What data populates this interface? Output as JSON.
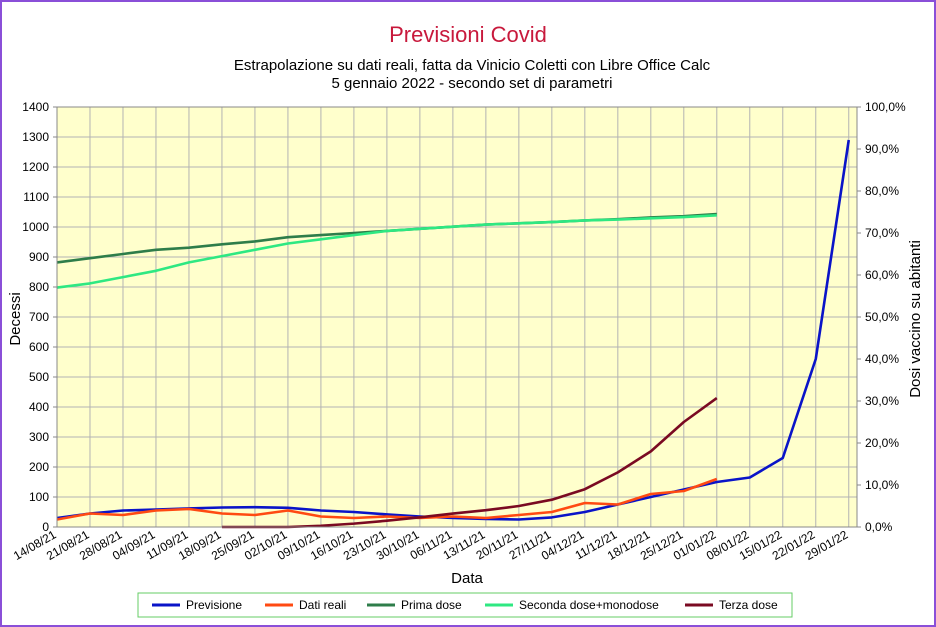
{
  "chart_data": {
    "type": "line",
    "title": "Previsioni Covid",
    "subtitle": [
      "Estrapolazione su dati reali, fatta da Vinicio Coletti con Libre Office Calc",
      "5 gennaio 2022 - secondo set di parametri"
    ],
    "x_label": "Data",
    "y_label": "Decessi",
    "y2_label": "Dosi vaccino su abitanti",
    "x": [
      "14/08/21",
      "21/08/21",
      "28/08/21",
      "04/09/21",
      "11/09/21",
      "18/09/21",
      "25/09/21",
      "02/10/21",
      "09/10/21",
      "16/10/21",
      "23/10/21",
      "30/10/21",
      "06/11/21",
      "13/11/21",
      "20/11/21",
      "27/11/21",
      "04/12/21",
      "11/12/21",
      "18/12/21",
      "25/12/21",
      "01/01/22",
      "08/01/22",
      "15/01/22",
      "22/01/22",
      "29/01/22"
    ],
    "ylim": [
      0,
      1400
    ],
    "yticks": [
      0,
      100,
      200,
      300,
      400,
      500,
      600,
      700,
      800,
      900,
      1000,
      1100,
      1200,
      1300,
      1400
    ],
    "y2lim": [
      0,
      100
    ],
    "y2ticks": [
      {
        "value": 0,
        "label": "0,0%"
      },
      {
        "value": 10,
        "label": "10,0%"
      },
      {
        "value": 20,
        "label": "20,0%"
      },
      {
        "value": 30,
        "label": "30,0%"
      },
      {
        "value": 40,
        "label": "40,0%"
      },
      {
        "value": 50,
        "label": "50,0%"
      },
      {
        "value": 60,
        "label": "60,0%"
      },
      {
        "value": 70,
        "label": "70,0%"
      },
      {
        "value": 80,
        "label": "80,0%"
      },
      {
        "value": 90,
        "label": "90,0%"
      },
      {
        "value": 100,
        "label": "100,0%"
      }
    ],
    "grid": true,
    "legend": "bottom",
    "series": [
      {
        "name": "Previsione",
        "color": "#0a14c8",
        "values": [
          30,
          45,
          55,
          58,
          62,
          65,
          66,
          64,
          55,
          50,
          42,
          35,
          30,
          27,
          25,
          32,
          50,
          75,
          100,
          125,
          150,
          165,
          230,
          560,
          1290
        ]
      },
      {
        "name": "Dati reali",
        "color": "#ff4a12",
        "values": [
          25,
          45,
          40,
          55,
          60,
          45,
          40,
          55,
          35,
          30,
          35,
          30,
          35,
          30,
          40,
          50,
          80,
          75,
          110,
          120,
          160,
          null,
          null,
          null,
          null
        ]
      },
      {
        "name": "Prima dose",
        "color": "#2e7d4a",
        "axis": "y2",
        "values": [
          63,
          64,
          65,
          66,
          66.5,
          67.3,
          68,
          69,
          69.5,
          70,
          70.5,
          71,
          71.5,
          72,
          72.3,
          72.6,
          73,
          73.3,
          73.7,
          74,
          74.5,
          null,
          null,
          null,
          null
        ]
      },
      {
        "name": "Seconda dose+monodose",
        "color": "#2ee882",
        "axis": "y2",
        "values": [
          57,
          58,
          59.5,
          61,
          63,
          64.5,
          66,
          67.5,
          68.5,
          69.5,
          70.5,
          71,
          71.5,
          72,
          72.3,
          72.6,
          73,
          73.2,
          73.5,
          73.8,
          74.2,
          null,
          null,
          null,
          null
        ]
      },
      {
        "name": "Terza dose",
        "color": "#7a0a22",
        "axis": "y2",
        "values": [
          null,
          null,
          null,
          null,
          null,
          0,
          0,
          0,
          0.3,
          0.8,
          1.5,
          2.3,
          3.2,
          4,
          5,
          6.5,
          9,
          13,
          18,
          25,
          30.7,
          null,
          null,
          null,
          null
        ]
      }
    ]
  }
}
